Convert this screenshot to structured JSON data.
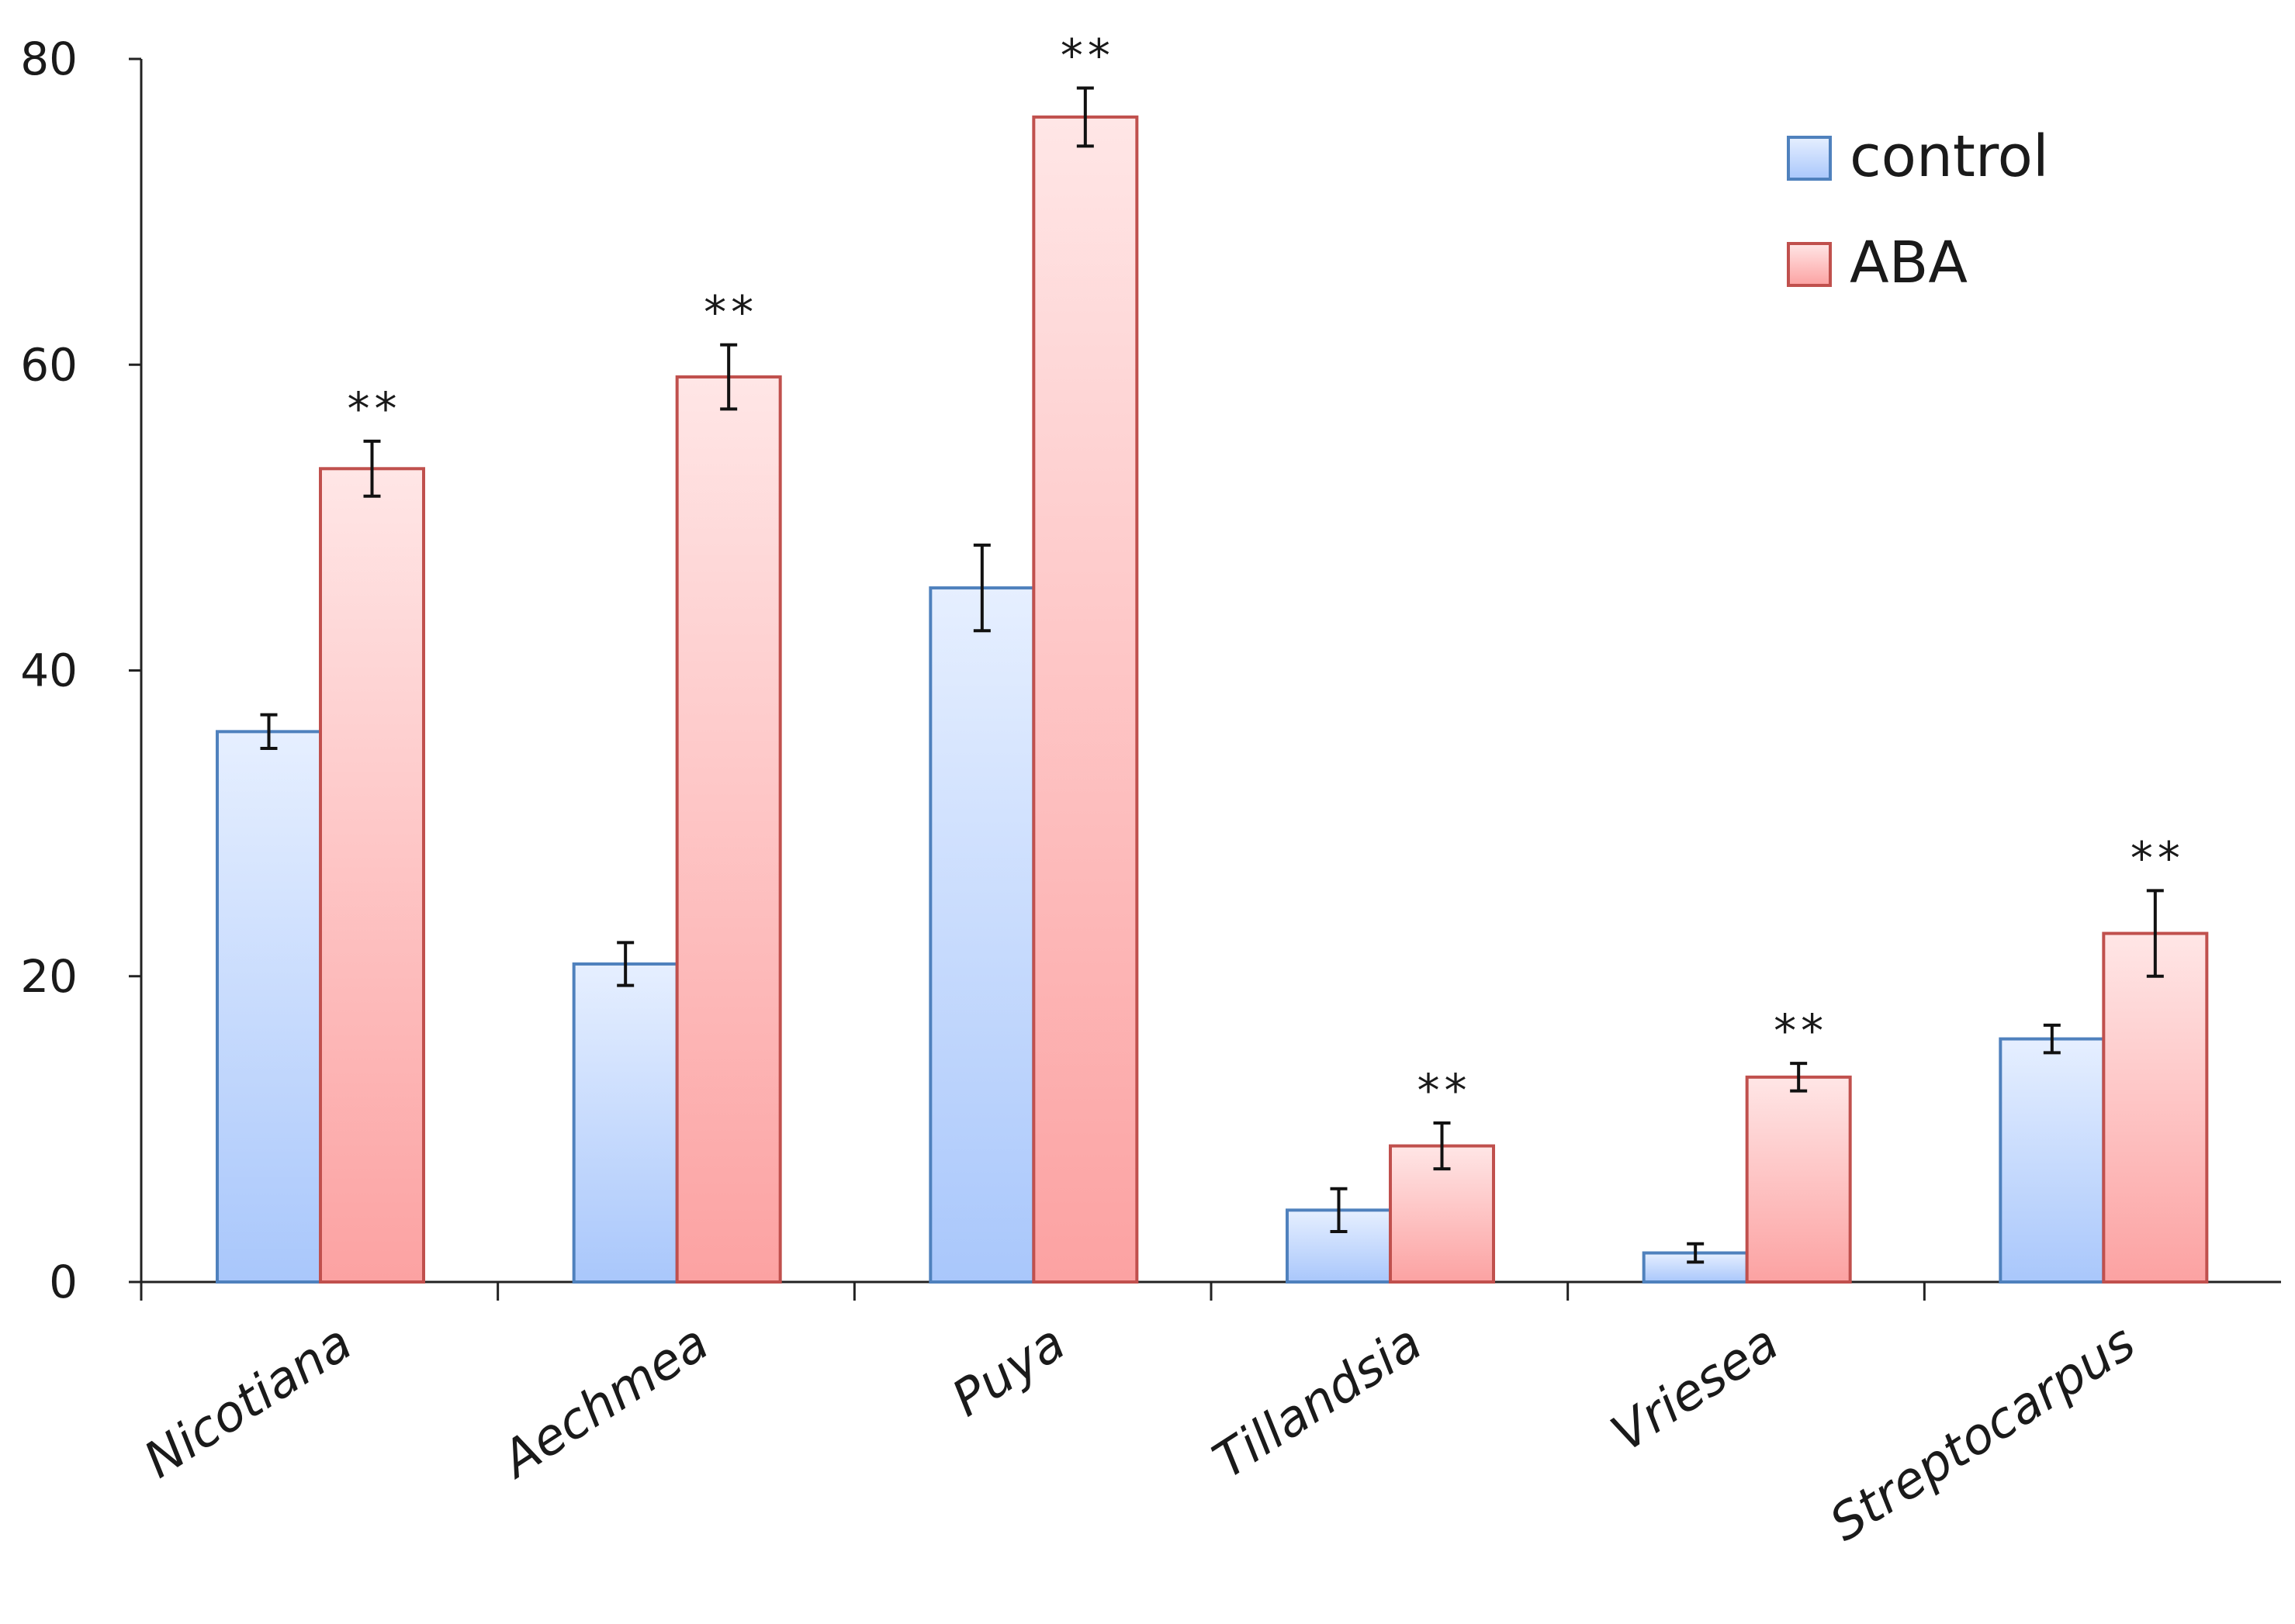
{
  "chart_data": {
    "type": "bar",
    "title": "",
    "xlabel": "",
    "ylabel": "",
    "ylim": [
      0,
      80
    ],
    "yticks": [
      0,
      20,
      40,
      60,
      80
    ],
    "grid": false,
    "legend_position": "top-right",
    "categories": [
      "Nicotiana",
      "Aechmea",
      "Puya",
      "Tillandsia",
      "Vriesea",
      "Streptocarpus"
    ],
    "series": [
      {
        "name": "control",
        "color_top": "#e6efff",
        "color_bottom": "#a9c7fb",
        "border": "#4f81bd",
        "values": [
          36.0,
          20.8,
          45.4,
          4.7,
          1.9,
          15.9
        ],
        "errors": [
          1.1,
          1.4,
          2.8,
          1.4,
          0.6,
          0.9
        ]
      },
      {
        "name": "ABA",
        "color_top": "#ffe6e6",
        "color_bottom": "#fca2a2",
        "border": "#c0504d",
        "values": [
          53.2,
          59.2,
          76.2,
          8.9,
          13.4,
          22.8
        ],
        "errors": [
          1.8,
          2.1,
          1.9,
          1.5,
          0.9,
          2.8
        ]
      }
    ],
    "significance": [
      "**",
      "**",
      "**",
      "**",
      "**",
      "**"
    ]
  }
}
